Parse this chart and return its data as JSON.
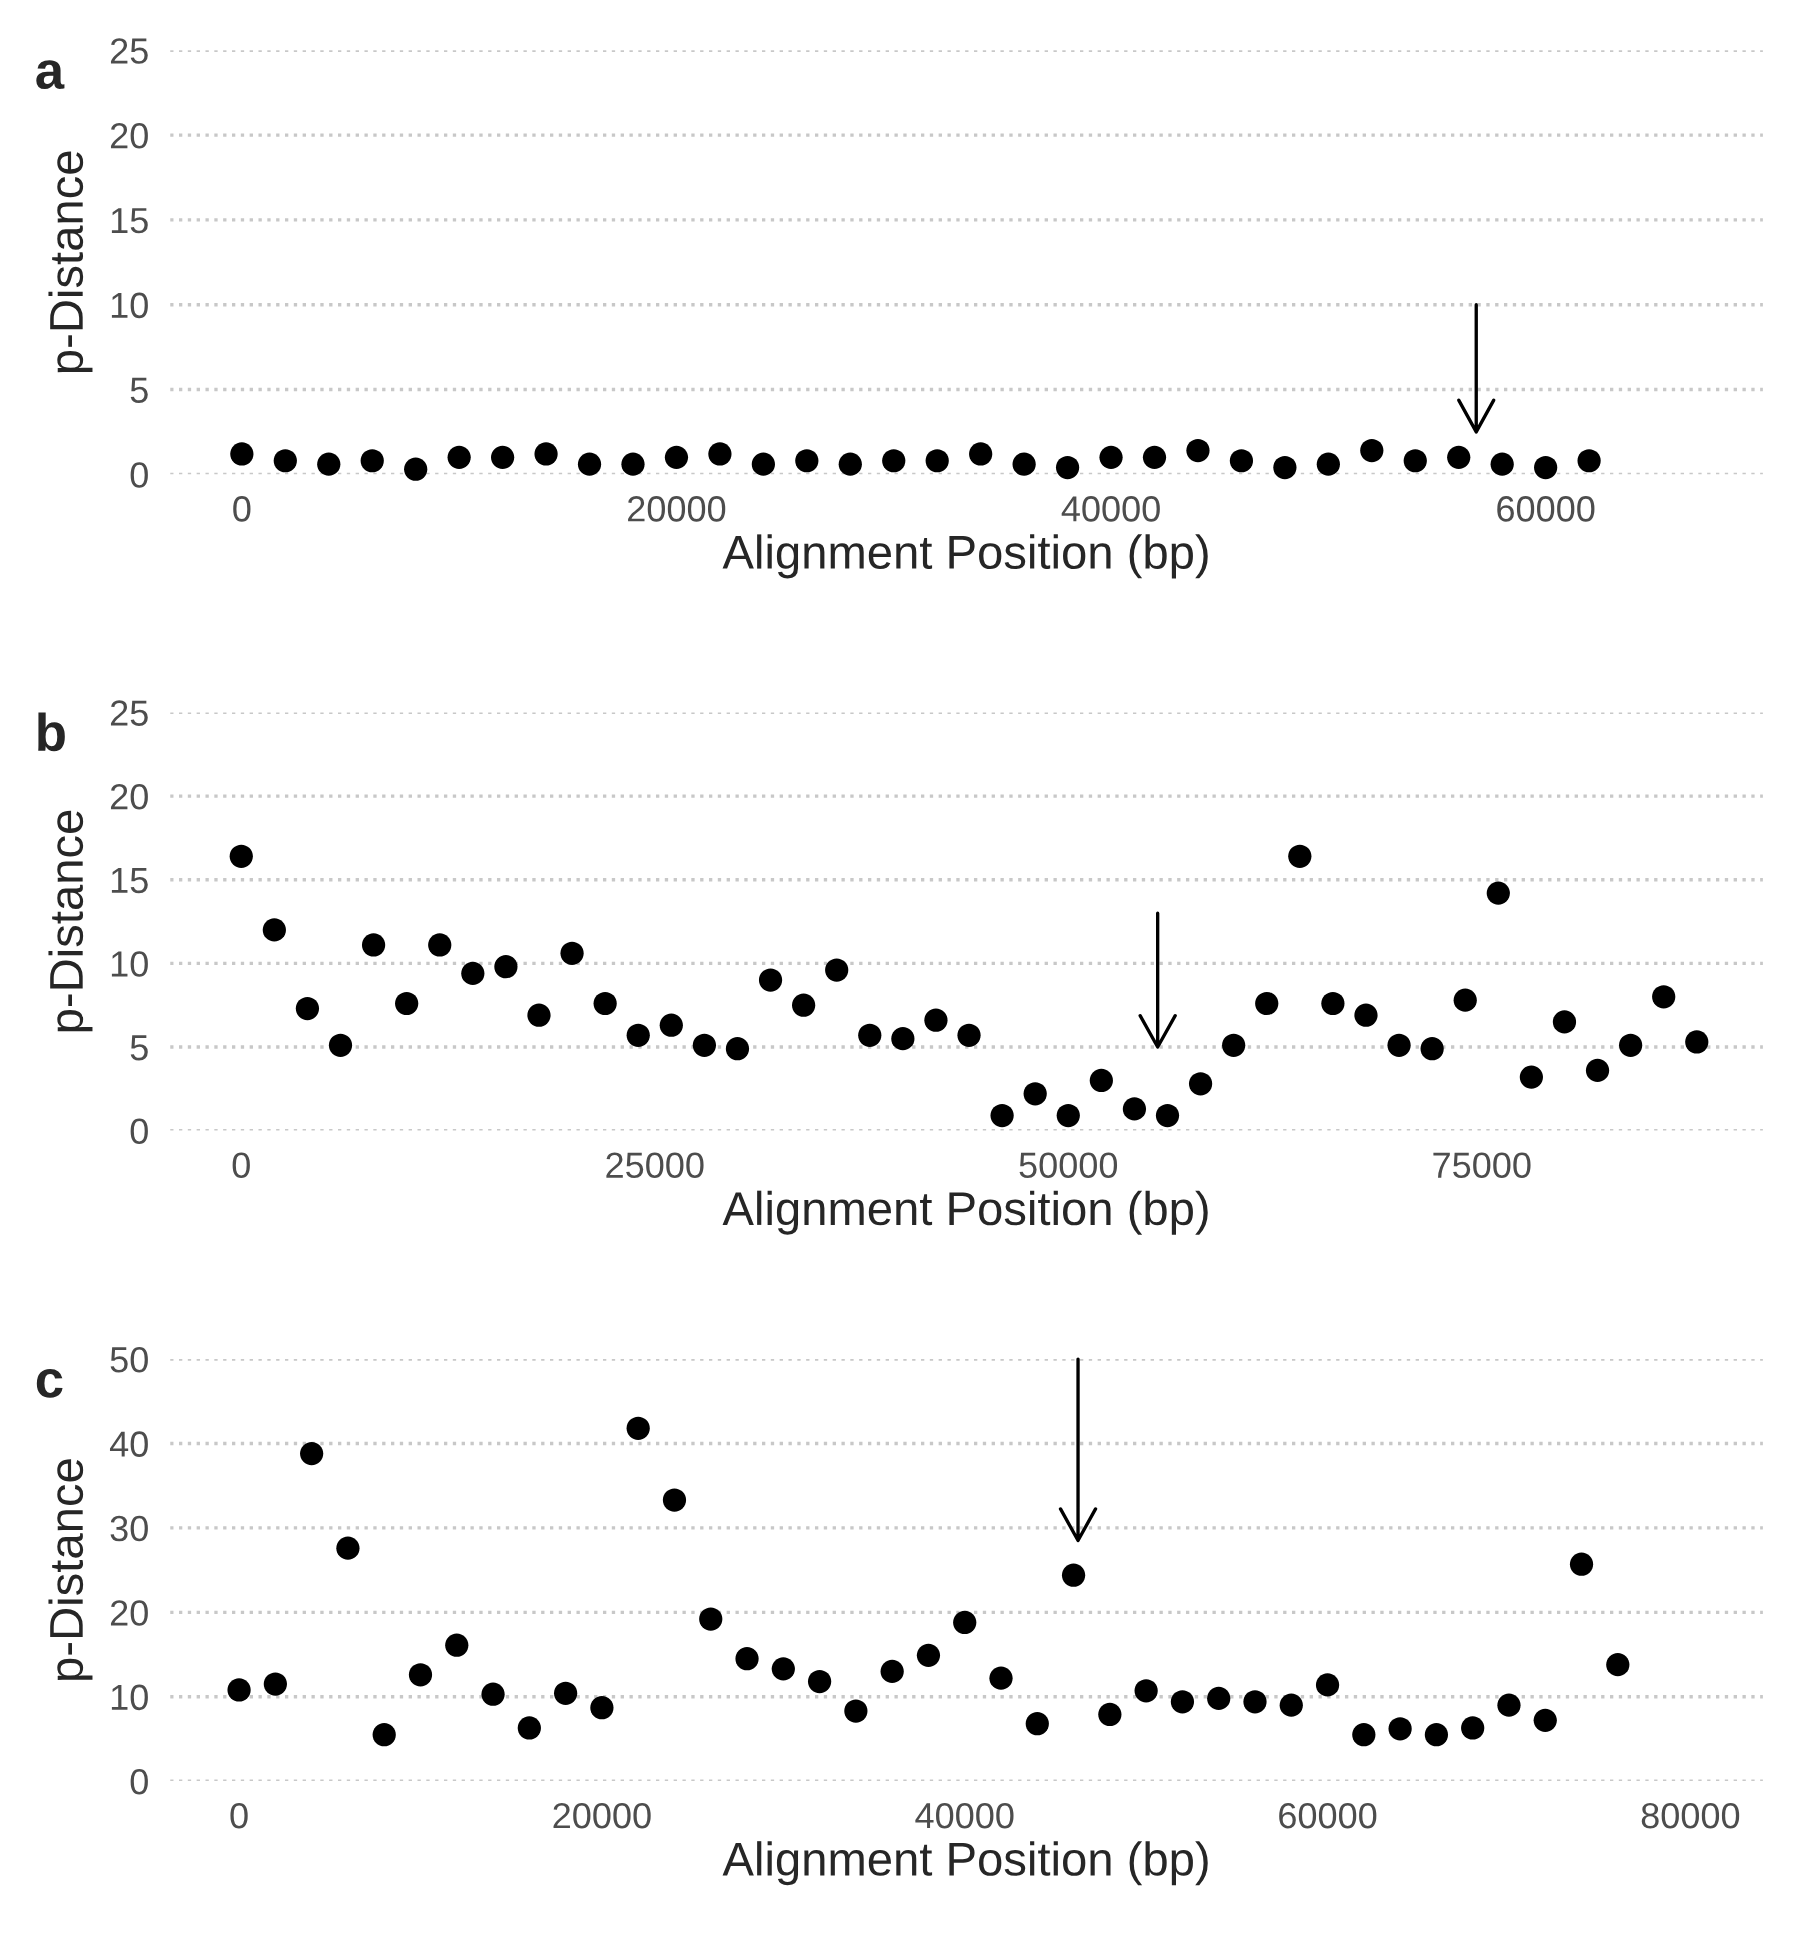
{
  "chart_data": [
    {
      "type": "scatter",
      "title": "a",
      "xlabel": "Alignment Position (bp)",
      "ylabel": "p-Distance",
      "grid": "y",
      "legend": false,
      "marker": "circle",
      "x": [
        0,
        2000,
        4000,
        6000,
        8000,
        10000,
        12000,
        14000,
        16000,
        18000,
        20000,
        22000,
        24000,
        26000,
        28000,
        30000,
        32000,
        34000,
        36000,
        38000,
        40000,
        42000,
        44000,
        46000,
        48000,
        50000,
        52000,
        54000,
        56000,
        58000,
        60000,
        62000
      ],
      "series": [
        {
          "color": "#000000",
          "values": [
            1.2,
            0.8,
            0.6,
            0.8,
            0.3,
            1.0,
            1.0,
            1.2,
            0.6,
            0.6,
            1.0,
            1.2,
            0.6,
            0.8,
            0.6,
            0.8,
            0.8,
            1.2,
            0.6,
            0.4,
            1.0,
            1.0,
            1.4,
            0.8,
            0.4,
            0.6,
            1.4,
            0.8,
            1.0,
            0.6,
            0.4,
            0.8
          ]
        }
      ],
      "xlim": [
        -3300,
        70000
      ],
      "xticks": [
        0,
        20000,
        40000,
        60000
      ],
      "ylim": [
        0,
        25
      ],
      "yticks": [
        0,
        5,
        10,
        15,
        20,
        25
      ]
    },
    {
      "type": "scatter",
      "title": "b",
      "xlabel": "Alignment Position (bp)",
      "ylabel": "p-Distance",
      "grid": "y",
      "legend": false,
      "marker": "circle",
      "x": [
        0,
        2000,
        4000,
        6000,
        8000,
        10000,
        12000,
        14000,
        16000,
        18000,
        20000,
        22000,
        24000,
        26000,
        28000,
        30000,
        32000,
        34000,
        36000,
        38000,
        40000,
        42000,
        44000,
        46000,
        48000,
        50000,
        52000,
        54000,
        56000,
        58000,
        60000,
        62000,
        64000,
        66000,
        68000,
        70000,
        72000,
        74000,
        76000,
        78000,
        80000,
        82000,
        84000,
        86000,
        88000
      ],
      "series": [
        {
          "color": "#000000",
          "values": [
            16.4,
            12,
            7.3,
            5.1,
            11.1,
            7.6,
            11.1,
            9.4,
            9.8,
            6.9,
            10.6,
            7.6,
            5.7,
            6.3,
            5.1,
            4.9,
            9.0,
            7.5,
            9.6,
            5.7,
            5.5,
            6.6,
            5.7,
            0.9,
            2.2,
            0.9,
            3.0,
            1.3,
            0.9,
            2.8,
            5.1,
            7.6,
            16.4,
            7.6,
            6.9,
            5.1,
            4.9,
            7.8,
            14.2,
            3.2,
            6.5,
            3.6,
            5.1,
            8.0,
            5.3
          ]
        }
      ],
      "xlim": [
        -4300,
        92000
      ],
      "xticks": [
        0,
        25000,
        50000,
        75000
      ],
      "ylim": [
        0,
        25
      ],
      "yticks": [
        0,
        5,
        10,
        15,
        20,
        25
      ]
    },
    {
      "type": "scatter",
      "title": "c",
      "xlabel": "Alignment Position (bp)",
      "ylabel": "p-Distance",
      "grid": "y",
      "legend": false,
      "marker": "circle",
      "x": [
        0,
        2000,
        4000,
        6000,
        8000,
        10000,
        12000,
        14000,
        16000,
        18000,
        20000,
        22000,
        24000,
        26000,
        28000,
        30000,
        32000,
        34000,
        36000,
        38000,
        40000,
        42000,
        44000,
        46000,
        48000,
        50000,
        52000,
        54000,
        56000,
        58000,
        60000,
        62000,
        64000,
        66000,
        68000,
        70000,
        72000,
        74000,
        76000
      ],
      "series": [
        {
          "color": "#000000",
          "values": [
            10.8,
            11.5,
            38.8,
            27.6,
            5.5,
            12.6,
            16.1,
            10.3,
            6.3,
            10.4,
            8.7,
            41.8,
            33.3,
            19.2,
            14.5,
            13.3,
            11.8,
            8.3,
            13.0,
            14.9,
            18.8,
            12.2,
            6.8,
            24.4,
            7.9,
            10.7,
            9.4,
            9.8,
            9.4,
            9.0,
            11.4,
            5.5,
            6.2,
            5.5,
            6.3,
            9.0,
            7.2,
            25.7,
            13.8
          ]
        }
      ],
      "xlim": [
        -3800,
        84000
      ],
      "xticks": [
        0,
        20000,
        40000,
        60000,
        80000
      ],
      "ylim": [
        0,
        50
      ],
      "yticks": [
        0,
        10,
        20,
        30,
        40,
        50
      ]
    }
  ]
}
